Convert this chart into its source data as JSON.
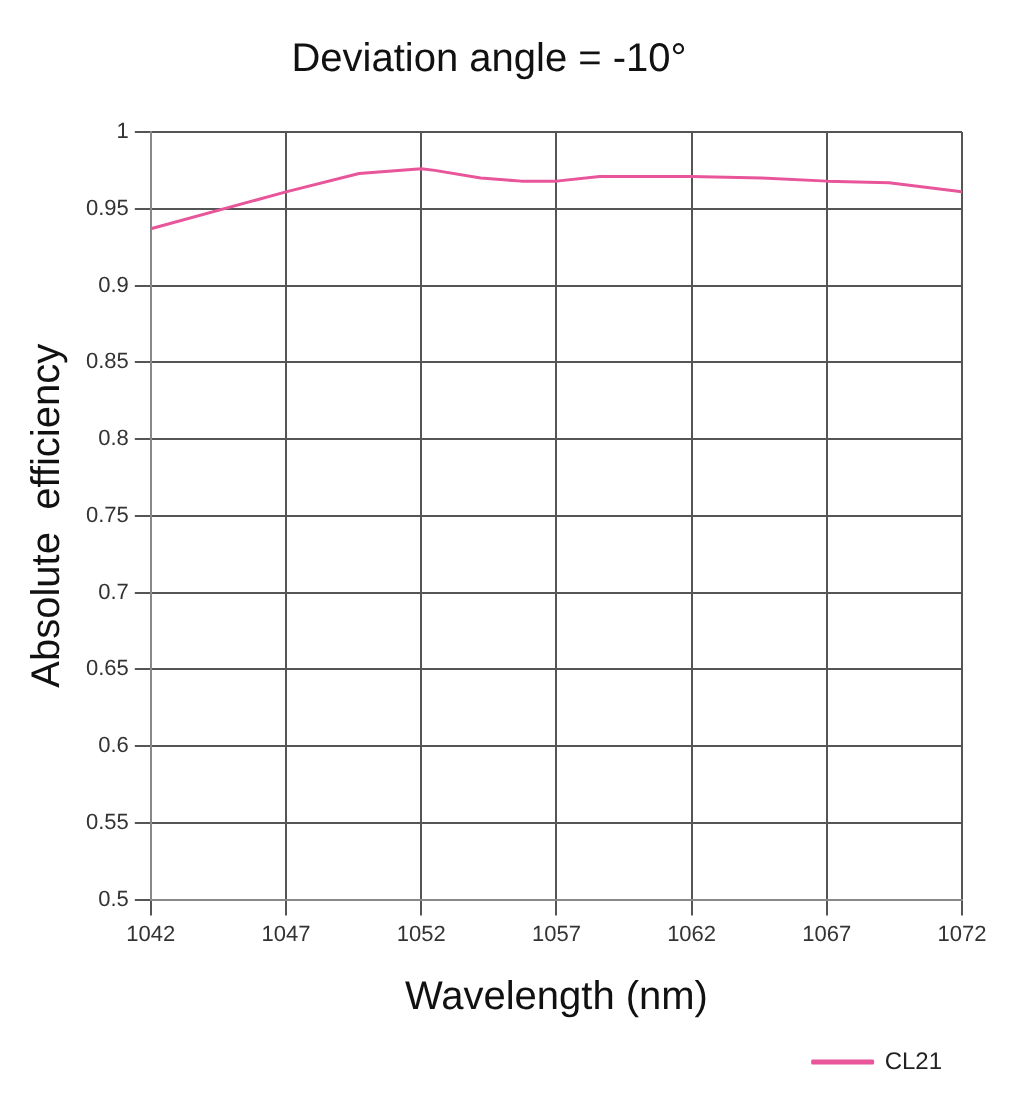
{
  "chart_data": {
    "type": "line",
    "title": "Deviation angle = -10°",
    "xlabel": "Wavelength (nm)",
    "ylabel": "Absolute  efficiency",
    "x": [
      1042,
      1047,
      1049.7,
      1052,
      1052.5,
      1054.2,
      1055.7,
      1057,
      1058.6,
      1062,
      1064.6,
      1067,
      1069.3,
      1072
    ],
    "series": [
      {
        "name": "CL21",
        "color": "#e8559a",
        "values": [
          0.937,
          0.961,
          0.973,
          0.976,
          0.975,
          0.97,
          0.968,
          0.968,
          0.971,
          0.971,
          0.97,
          0.968,
          0.967,
          0.961
        ]
      }
    ],
    "xlim": [
      1042,
      1072
    ],
    "xticks": [
      1042,
      1047,
      1052,
      1057,
      1062,
      1067,
      1072
    ],
    "ylim": [
      0.5,
      1
    ],
    "yticks": [
      0.5,
      0.55,
      0.6,
      0.65,
      0.7,
      0.75,
      0.8,
      0.85,
      0.9,
      0.95,
      1
    ],
    "grid": true,
    "legend": "bottom right",
    "marker": "none",
    "line_style": "solid"
  }
}
